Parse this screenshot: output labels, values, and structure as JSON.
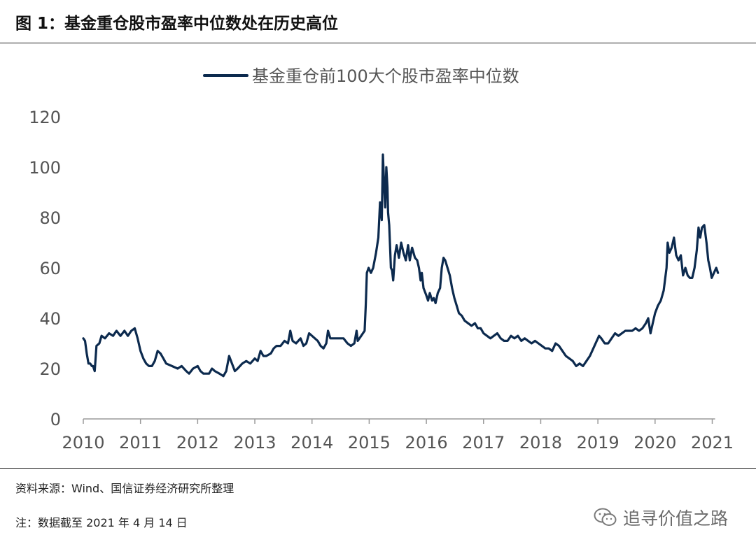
{
  "figure": {
    "title": "图 1：基金重仓股市盈率中位数处在历史高位",
    "source": "资料来源：Wind、国信证券经济研究所整理",
    "note": "注：数据截至 2021 年 4 月 14 日",
    "watermark": "追寻价值之路",
    "watermark_icon": "wechat-icon"
  },
  "chart_data": {
    "type": "line",
    "title": "",
    "xlabel": "",
    "ylabel": "",
    "ylim": [
      0,
      120
    ],
    "yticks": [
      0,
      20,
      40,
      60,
      80,
      100,
      120
    ],
    "xlim": [
      2010.0,
      2021.3
    ],
    "xticks": [
      "2010",
      "2011",
      "2012",
      "2013",
      "2014",
      "2015",
      "2016",
      "2017",
      "2018",
      "2019",
      "2020",
      "2021"
    ],
    "grid": false,
    "legend": "top-center",
    "series": [
      {
        "name": "基金重仓前100大个股市盈率中位数",
        "color": "#0c2a4e",
        "points": [
          [
            2010.0,
            32
          ],
          [
            2010.03,
            31
          ],
          [
            2010.06,
            26
          ],
          [
            2010.09,
            22
          ],
          [
            2010.12,
            22
          ],
          [
            2010.15,
            21
          ],
          [
            2010.17,
            21
          ],
          [
            2010.2,
            19
          ],
          [
            2010.23,
            29
          ],
          [
            2010.28,
            30
          ],
          [
            2010.32,
            33
          ],
          [
            2010.38,
            32
          ],
          [
            2010.45,
            34
          ],
          [
            2010.52,
            33
          ],
          [
            2010.58,
            35
          ],
          [
            2010.65,
            33
          ],
          [
            2010.72,
            35
          ],
          [
            2010.78,
            33
          ],
          [
            2010.84,
            35
          ],
          [
            2010.9,
            36
          ],
          [
            2010.95,
            32
          ],
          [
            2011.0,
            27
          ],
          [
            2011.05,
            24
          ],
          [
            2011.1,
            22
          ],
          [
            2011.15,
            21
          ],
          [
            2011.2,
            21
          ],
          [
            2011.25,
            23
          ],
          [
            2011.3,
            27
          ],
          [
            2011.35,
            26
          ],
          [
            2011.4,
            24
          ],
          [
            2011.45,
            22
          ],
          [
            2011.55,
            21
          ],
          [
            2011.65,
            20
          ],
          [
            2011.72,
            21
          ],
          [
            2011.8,
            19
          ],
          [
            2011.85,
            18
          ],
          [
            2011.92,
            20
          ],
          [
            2012.0,
            21
          ],
          [
            2012.05,
            19
          ],
          [
            2012.1,
            18
          ],
          [
            2012.2,
            18
          ],
          [
            2012.25,
            20
          ],
          [
            2012.3,
            19
          ],
          [
            2012.38,
            18
          ],
          [
            2012.45,
            17
          ],
          [
            2012.5,
            19
          ],
          [
            2012.55,
            25
          ],
          [
            2012.6,
            22
          ],
          [
            2012.65,
            19
          ],
          [
            2012.7,
            20
          ],
          [
            2012.78,
            22
          ],
          [
            2012.85,
            23
          ],
          [
            2012.92,
            22
          ],
          [
            2013.0,
            24
          ],
          [
            2013.05,
            23
          ],
          [
            2013.1,
            27
          ],
          [
            2013.15,
            25
          ],
          [
            2013.2,
            25
          ],
          [
            2013.28,
            26
          ],
          [
            2013.33,
            28
          ],
          [
            2013.38,
            29
          ],
          [
            2013.45,
            29
          ],
          [
            2013.52,
            31
          ],
          [
            2013.58,
            30
          ],
          [
            2013.62,
            35
          ],
          [
            2013.66,
            31
          ],
          [
            2013.72,
            30
          ],
          [
            2013.8,
            32
          ],
          [
            2013.85,
            29
          ],
          [
            2013.9,
            30
          ],
          [
            2013.95,
            34
          ],
          [
            2014.0,
            33
          ],
          [
            2014.05,
            32
          ],
          [
            2014.1,
            31
          ],
          [
            2014.15,
            29
          ],
          [
            2014.2,
            28
          ],
          [
            2014.25,
            30
          ],
          [
            2014.28,
            35
          ],
          [
            2014.32,
            32
          ],
          [
            2014.4,
            32
          ],
          [
            2014.5,
            32
          ],
          [
            2014.55,
            32
          ],
          [
            2014.62,
            30
          ],
          [
            2014.68,
            29
          ],
          [
            2014.74,
            30
          ],
          [
            2014.78,
            35
          ],
          [
            2014.8,
            31
          ],
          [
            2014.86,
            33
          ],
          [
            2014.92,
            35
          ],
          [
            2014.94,
            45
          ],
          [
            2014.96,
            58
          ],
          [
            2014.99,
            60
          ],
          [
            2015.03,
            58
          ],
          [
            2015.07,
            60
          ],
          [
            2015.12,
            66
          ],
          [
            2015.16,
            72
          ],
          [
            2015.19,
            86
          ],
          [
            2015.22,
            79
          ],
          [
            2015.24,
            105
          ],
          [
            2015.26,
            94
          ],
          [
            2015.28,
            84
          ],
          [
            2015.3,
            100
          ],
          [
            2015.32,
            92
          ],
          [
            2015.33,
            82
          ],
          [
            2015.35,
            77
          ],
          [
            2015.37,
            66
          ],
          [
            2015.38,
            60
          ],
          [
            2015.4,
            59
          ],
          [
            2015.42,
            55
          ],
          [
            2015.45,
            65
          ],
          [
            2015.48,
            69
          ],
          [
            2015.52,
            64
          ],
          [
            2015.56,
            70
          ],
          [
            2015.6,
            66
          ],
          [
            2015.64,
            63
          ],
          [
            2015.68,
            69
          ],
          [
            2015.71,
            63
          ],
          [
            2015.75,
            68
          ],
          [
            2015.8,
            64
          ],
          [
            2015.84,
            63
          ],
          [
            2015.87,
            60
          ],
          [
            2015.9,
            55
          ],
          [
            2015.92,
            58
          ],
          [
            2015.95,
            52
          ],
          [
            2016.0,
            49
          ],
          [
            2016.03,
            47
          ],
          [
            2016.06,
            50
          ],
          [
            2016.1,
            47
          ],
          [
            2016.13,
            48
          ],
          [
            2016.16,
            46
          ],
          [
            2016.2,
            50
          ],
          [
            2016.24,
            52
          ],
          [
            2016.27,
            60
          ],
          [
            2016.3,
            64
          ],
          [
            2016.33,
            63
          ],
          [
            2016.37,
            60
          ],
          [
            2016.41,
            57
          ],
          [
            2016.45,
            52
          ],
          [
            2016.49,
            48
          ],
          [
            2016.53,
            45
          ],
          [
            2016.57,
            42
          ],
          [
            2016.62,
            41
          ],
          [
            2016.67,
            39
          ],
          [
            2016.73,
            38
          ],
          [
            2016.79,
            37
          ],
          [
            2016.85,
            38
          ],
          [
            2016.9,
            36
          ],
          [
            2016.95,
            36
          ],
          [
            2017.0,
            34
          ],
          [
            2017.06,
            33
          ],
          [
            2017.12,
            32
          ],
          [
            2017.18,
            33
          ],
          [
            2017.24,
            34
          ],
          [
            2017.3,
            32
          ],
          [
            2017.36,
            31
          ],
          [
            2017.42,
            31
          ],
          [
            2017.48,
            33
          ],
          [
            2017.54,
            32
          ],
          [
            2017.6,
            33
          ],
          [
            2017.66,
            31
          ],
          [
            2017.72,
            32
          ],
          [
            2017.78,
            31
          ],
          [
            2017.84,
            30
          ],
          [
            2017.9,
            31
          ],
          [
            2017.96,
            30
          ],
          [
            2018.02,
            29
          ],
          [
            2018.08,
            28
          ],
          [
            2018.14,
            28
          ],
          [
            2018.2,
            27
          ],
          [
            2018.26,
            30
          ],
          [
            2018.32,
            29
          ],
          [
            2018.38,
            27
          ],
          [
            2018.44,
            25
          ],
          [
            2018.5,
            24
          ],
          [
            2018.56,
            23
          ],
          [
            2018.62,
            21
          ],
          [
            2018.68,
            22
          ],
          [
            2018.74,
            21
          ],
          [
            2018.8,
            23
          ],
          [
            2018.86,
            25
          ],
          [
            2018.92,
            28
          ],
          [
            2018.98,
            31
          ],
          [
            2019.02,
            33
          ],
          [
            2019.06,
            32
          ],
          [
            2019.12,
            30
          ],
          [
            2019.18,
            30
          ],
          [
            2019.24,
            32
          ],
          [
            2019.3,
            34
          ],
          [
            2019.36,
            33
          ],
          [
            2019.42,
            34
          ],
          [
            2019.48,
            35
          ],
          [
            2019.54,
            35
          ],
          [
            2019.6,
            35
          ],
          [
            2019.66,
            36
          ],
          [
            2019.72,
            35
          ],
          [
            2019.78,
            36
          ],
          [
            2019.84,
            38
          ],
          [
            2019.88,
            40
          ],
          [
            2019.92,
            34
          ],
          [
            2019.96,
            38
          ],
          [
            2020.0,
            42
          ],
          [
            2020.05,
            45
          ],
          [
            2020.1,
            47
          ],
          [
            2020.15,
            51
          ],
          [
            2020.2,
            60
          ],
          [
            2020.22,
            70
          ],
          [
            2020.25,
            66
          ],
          [
            2020.29,
            68
          ],
          [
            2020.33,
            72
          ],
          [
            2020.37,
            65
          ],
          [
            2020.41,
            63
          ],
          [
            2020.45,
            65
          ],
          [
            2020.49,
            57
          ],
          [
            2020.53,
            60
          ],
          [
            2020.57,
            57
          ],
          [
            2020.61,
            56
          ],
          [
            2020.65,
            56
          ],
          [
            2020.69,
            60
          ],
          [
            2020.73,
            67
          ],
          [
            2020.76,
            76
          ],
          [
            2020.79,
            72
          ],
          [
            2020.82,
            76
          ],
          [
            2020.86,
            77
          ],
          [
            2020.9,
            70
          ],
          [
            2020.93,
            63
          ],
          [
            2020.96,
            60
          ],
          [
            2020.99,
            56
          ],
          [
            2021.03,
            58
          ],
          [
            2021.07,
            60
          ],
          [
            2021.1,
            58
          ]
        ]
      }
    ]
  }
}
